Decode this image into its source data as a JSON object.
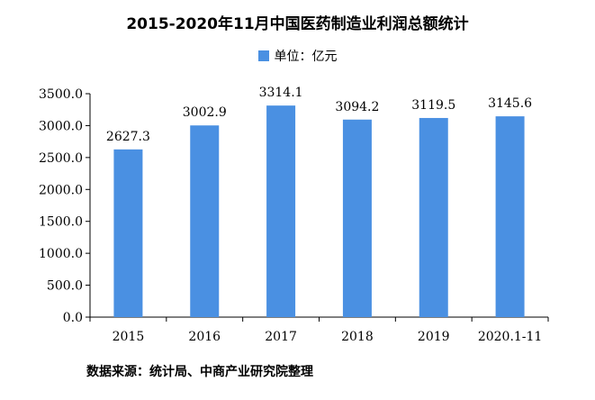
{
  "title": "2015-2020年11月中国医药制造业利润总额统计",
  "legend": {
    "label": "单位：亿元",
    "color": "#4a90e2"
  },
  "source": "数据来源：统计局、中商产业研究院整理",
  "chart_data": {
    "type": "bar",
    "title": "2015-2020年11月中国医药制造业利润总额统计",
    "categories": [
      "2015",
      "2016",
      "2017",
      "2018",
      "2019",
      "2020.1-11"
    ],
    "values": [
      2627.3,
      3002.9,
      3314.1,
      3094.2,
      3119.5,
      3145.6
    ],
    "value_labels": [
      "2627.3",
      "3002.9",
      "3314.1",
      "3094.2",
      "3119.5",
      "3145.6"
    ],
    "ylim": [
      0,
      3500
    ],
    "yticks": [
      0,
      500,
      1000,
      1500,
      2000,
      2500,
      3000,
      3500
    ],
    "ytick_labels": [
      "0.0",
      "500.0",
      "1000.0",
      "1500.0",
      "2000.0",
      "2500.0",
      "3000.0",
      "3500.0"
    ],
    "grid": false,
    "legend_position": "top-center",
    "bar_color": "#4a90e2"
  }
}
